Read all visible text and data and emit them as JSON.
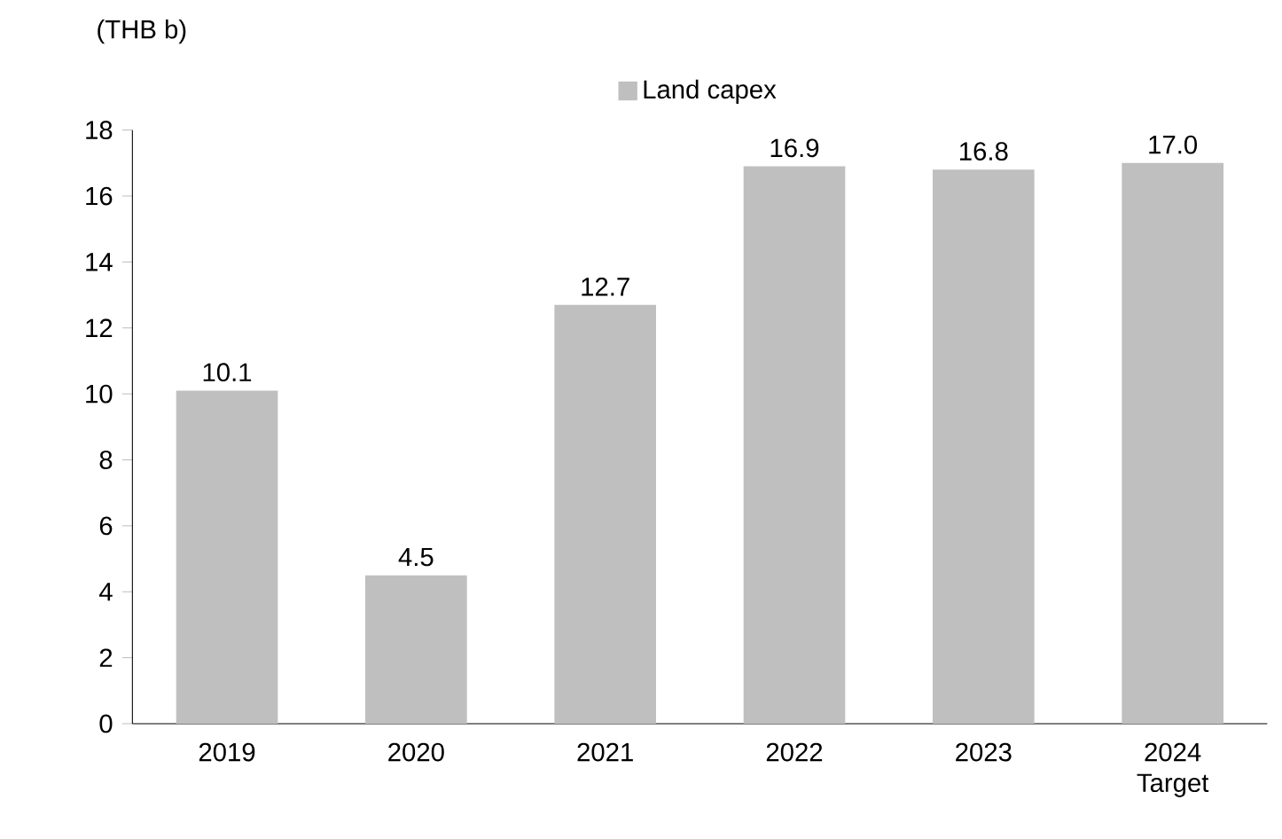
{
  "chart_data": {
    "type": "bar",
    "ylabel": "(THB b)",
    "categories": [
      "2019",
      "2020",
      "2021",
      "2022",
      "2023",
      "2024 Target"
    ],
    "series": [
      {
        "name": "Land capex",
        "color": "#bfbfbf",
        "values": [
          10.1,
          4.5,
          12.7,
          16.9,
          16.8,
          17.0
        ],
        "value_labels": [
          "10.1",
          "4.5",
          "12.7",
          "16.9",
          "16.8",
          "17.0"
        ]
      }
    ],
    "ylim": [
      0,
      18
    ],
    "yticks": [
      0,
      2,
      4,
      6,
      8,
      10,
      12,
      14,
      16,
      18
    ],
    "grid": false,
    "legend": "top"
  }
}
